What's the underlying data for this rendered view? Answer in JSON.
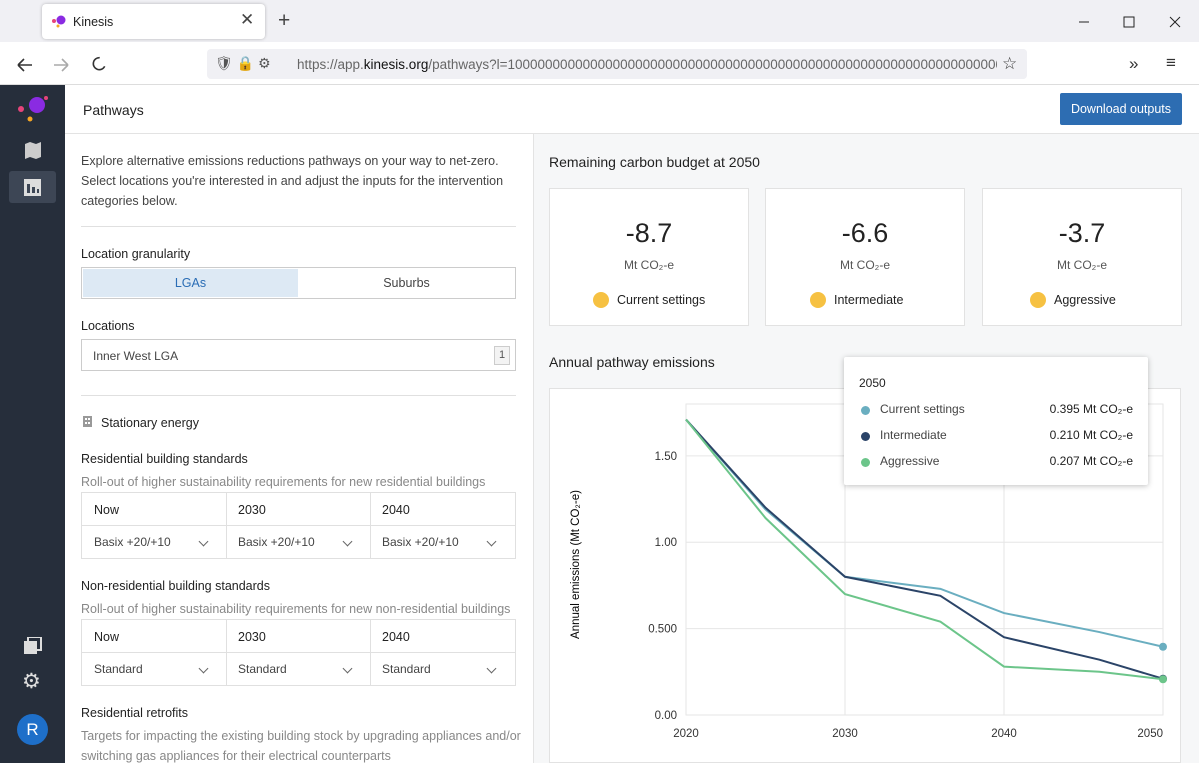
{
  "browser": {
    "tab_title": "Kinesis",
    "url_prefix": "https://app.",
    "url_host": "kinesis.org",
    "url_rest": "/pathways?l=1000000000000000000000000000000000000000000000000000000000000000000"
  },
  "sidebar": {
    "avatar": "R"
  },
  "header": {
    "title": "Pathways",
    "button": "Download outputs"
  },
  "left_panel": {
    "intro": "Explore alternative emissions reductions pathways on your way to net-zero. Select locations you're interested in and adjust the inputs for the intervention categories below.",
    "granularity_label": "Location granularity",
    "granularity_options": [
      "LGAs",
      "Suburbs"
    ],
    "locations_label": "Locations",
    "location_value": "Inner West LGA",
    "location_count": "1",
    "section": "Stationary energy",
    "groups": [
      {
        "title": "Residential building standards",
        "description": "Roll-out of higher sustainability requirements for new residential buildings",
        "columns": [
          "Now",
          "2030",
          "2040"
        ],
        "values": [
          "Basix +20/+10",
          "Basix +20/+10",
          "Basix +20/+10"
        ]
      },
      {
        "title": "Non-residential building standards",
        "description": "Roll-out of higher sustainability requirements for new non-residential buildings",
        "columns": [
          "Now",
          "2030",
          "2040"
        ],
        "values": [
          "Standard",
          "Standard",
          "Standard"
        ]
      },
      {
        "title": "Residential retrofits",
        "description": "Targets for impacting the existing building stock by upgrading appliances and/or switching gas appliances for their electrical counterparts"
      }
    ]
  },
  "budget": {
    "title": "Remaining carbon budget at 2050",
    "unit": "Mt CO₂-e",
    "cards": [
      {
        "value": -8.7,
        "label": "Current settings"
      },
      {
        "value": -6.6,
        "label": "Intermediate"
      },
      {
        "value": -3.7,
        "label": "Aggressive"
      }
    ]
  },
  "chart_data": {
    "type": "line",
    "title": "Annual pathway emissions",
    "y_label": "Annual emissions (Mt CO₂-e)",
    "x": [
      2020,
      2025,
      2030,
      2036,
      2040,
      2046,
      2050
    ],
    "series": [
      {
        "name": "Current settings",
        "color": "#6aaec0",
        "values": [
          1.71,
          1.19,
          0.8,
          0.73,
          0.59,
          0.48,
          0.395
        ],
        "value_labels": [
          null,
          null,
          null,
          null,
          null,
          null,
          "0.395 Mt CO₂-e"
        ]
      },
      {
        "name": "Intermediate",
        "color": "#2b4468",
        "values": [
          1.71,
          1.2,
          0.8,
          0.69,
          0.45,
          0.32,
          0.21
        ],
        "value_labels": [
          null,
          null,
          null,
          null,
          null,
          null,
          "0.210 Mt CO₂-e"
        ]
      },
      {
        "name": "Aggressive",
        "color": "#6cc58a",
        "values": [
          1.71,
          1.14,
          0.7,
          0.54,
          0.28,
          0.25,
          0.207
        ],
        "value_labels": [
          null,
          null,
          null,
          null,
          null,
          null,
          "0.207 Mt CO₂-e"
        ]
      }
    ],
    "xlim": [
      2020,
      2050
    ],
    "xticks": [
      2020,
      2030,
      2040,
      2050
    ],
    "ylim": [
      0,
      1.8
    ],
    "yticks": [
      {
        "value": 0,
        "label": "0.00"
      },
      {
        "value": 0.5,
        "label": "0.500"
      },
      {
        "value": 1,
        "label": "1.00"
      },
      {
        "value": 1.5,
        "label": "1.50"
      }
    ],
    "grid": true,
    "tooltip_index": 6
  }
}
